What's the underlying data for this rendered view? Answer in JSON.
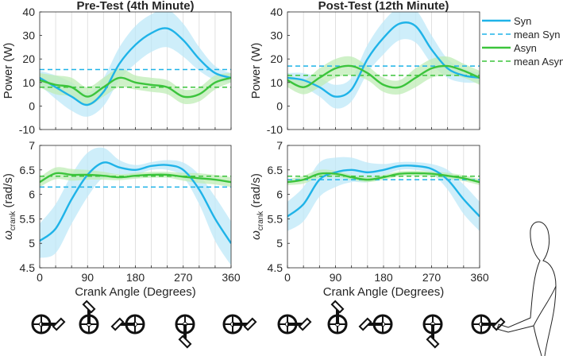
{
  "colors": {
    "syn": "#1fb3e8",
    "syn_band": "#bde8f8",
    "asyn": "#3cc43c",
    "asyn_band": "#bfecb5"
  },
  "legend": {
    "items": [
      {
        "label": "Syn",
        "series": "syn",
        "style": "solid"
      },
      {
        "label": "mean Syn",
        "series": "syn",
        "style": "dashed"
      },
      {
        "label": "Asyn",
        "series": "asyn",
        "style": "solid"
      },
      {
        "label": "mean Asyn",
        "series": "asyn",
        "style": "dashed"
      }
    ],
    "placement": "right"
  },
  "chart_data": [
    {
      "type": "line",
      "title": "Pre-Test (4th Minute)",
      "panel": "pre-power",
      "xlabel": "",
      "ylabel": "Power (W)",
      "xlim": [
        0,
        360
      ],
      "ylim": [
        -10,
        40
      ],
      "yticks": [
        "-10",
        "0",
        "10",
        "20",
        "30",
        "40"
      ],
      "grid": "x",
      "x": [
        0,
        30,
        60,
        90,
        120,
        150,
        180,
        210,
        240,
        270,
        300,
        330,
        360
      ],
      "series": [
        {
          "name": "Syn",
          "key": "syn",
          "values": [
            12,
            8,
            4,
            0.5,
            6,
            18,
            26,
            31,
            33,
            28,
            20,
            14,
            12
          ],
          "band": [
            3,
            5,
            6,
            5,
            6,
            7,
            8,
            8,
            8,
            7,
            5,
            3,
            2
          ],
          "mean": 15.5
        },
        {
          "name": "Asyn",
          "key": "asyn",
          "values": [
            11,
            9,
            8,
            4,
            8,
            12,
            10,
            9,
            8,
            4,
            5,
            10,
            12
          ],
          "band": [
            3,
            4,
            4,
            4,
            4,
            4,
            3,
            3,
            3,
            3,
            3,
            3,
            2
          ],
          "mean": 8
        }
      ]
    },
    {
      "type": "line",
      "title": "Post-Test (12th Minute)",
      "panel": "post-power",
      "xlabel": "",
      "ylabel": "Power (W)",
      "xlim": [
        0,
        360
      ],
      "ylim": [
        -10,
        40
      ],
      "yticks": [
        "-10",
        "0",
        "10",
        "20",
        "30",
        "40"
      ],
      "grid": "x",
      "x": [
        0,
        30,
        60,
        90,
        120,
        150,
        180,
        210,
        240,
        270,
        300,
        330,
        360
      ],
      "series": [
        {
          "name": "Syn",
          "key": "syn",
          "values": [
            12,
            11,
            8,
            4,
            7,
            20,
            29,
            35,
            34,
            24,
            16,
            13,
            12
          ],
          "band": [
            2,
            3,
            4,
            5,
            5,
            6,
            7,
            7,
            7,
            6,
            4,
            3,
            2
          ],
          "mean": 17
        },
        {
          "name": "Asyn",
          "key": "asyn",
          "values": [
            11,
            8,
            12,
            16,
            17,
            14,
            9,
            8,
            12,
            16,
            17,
            15,
            12
          ],
          "band": [
            3,
            3,
            4,
            4,
            4,
            3,
            3,
            3,
            4,
            4,
            4,
            3,
            3
          ],
          "mean": 13
        }
      ]
    },
    {
      "type": "line",
      "title": "",
      "panel": "pre-velocity",
      "xlabel": "Crank Angle (Degrees)",
      "ylabel_main": "ω",
      "ylabel_sub": "crank",
      "ylabel_unit": " (rad/s)",
      "xlim": [
        0,
        360
      ],
      "ylim": [
        4.5,
        7
      ],
      "xticks": [
        "0",
        "90",
        "180",
        "270",
        "360"
      ],
      "yticks": [
        "4.5",
        "5",
        "5.5",
        "6",
        "6.5",
        "7"
      ],
      "grid": "x",
      "x": [
        0,
        30,
        60,
        90,
        120,
        150,
        180,
        210,
        240,
        270,
        300,
        330,
        360
      ],
      "series": [
        {
          "name": "Syn",
          "key": "syn",
          "values": [
            5.05,
            5.3,
            5.9,
            6.4,
            6.65,
            6.55,
            6.5,
            6.58,
            6.6,
            6.5,
            6.1,
            5.5,
            5.0
          ],
          "band": [
            0.35,
            0.5,
            0.5,
            0.45,
            0.3,
            0.15,
            0.1,
            0.08,
            0.1,
            0.15,
            0.3,
            0.45,
            0.45
          ],
          "mean": 6.15
        },
        {
          "name": "Asyn",
          "key": "asyn",
          "values": [
            6.25,
            6.43,
            6.4,
            6.4,
            6.38,
            6.35,
            6.38,
            6.4,
            6.4,
            6.36,
            6.33,
            6.3,
            6.25
          ],
          "band": [
            0.1,
            0.12,
            0.12,
            0.1,
            0.08,
            0.06,
            0.06,
            0.06,
            0.06,
            0.08,
            0.1,
            0.1,
            0.1
          ],
          "mean": 6.37
        }
      ]
    },
    {
      "type": "line",
      "title": "",
      "panel": "post-velocity",
      "xlabel": "Crank Angle (Degrees)",
      "ylabel_main": "ω",
      "ylabel_sub": "crank",
      "ylabel_unit": " (rad/s)",
      "xlim": [
        0,
        360
      ],
      "ylim": [
        4.5,
        7
      ],
      "xticks": [
        "0",
        "90",
        "180",
        "270",
        "360"
      ],
      "yticks": [
        "4.5",
        "5",
        "5.5",
        "6",
        "6.5",
        "7"
      ],
      "grid": "x",
      "x": [
        0,
        30,
        60,
        90,
        120,
        150,
        180,
        210,
        240,
        270,
        300,
        330,
        360
      ],
      "series": [
        {
          "name": "Syn",
          "key": "syn",
          "values": [
            5.55,
            5.8,
            6.3,
            6.45,
            6.5,
            6.45,
            6.5,
            6.58,
            6.58,
            6.52,
            6.3,
            5.9,
            5.55
          ],
          "band": [
            0.3,
            0.35,
            0.35,
            0.3,
            0.25,
            0.2,
            0.12,
            0.08,
            0.08,
            0.1,
            0.2,
            0.3,
            0.3
          ],
          "mean": 6.3
        },
        {
          "name": "Asyn",
          "key": "asyn",
          "values": [
            6.25,
            6.3,
            6.42,
            6.42,
            6.35,
            6.3,
            6.35,
            6.42,
            6.43,
            6.42,
            6.38,
            6.33,
            6.25
          ],
          "band": [
            0.06,
            0.08,
            0.08,
            0.06,
            0.05,
            0.05,
            0.05,
            0.05,
            0.05,
            0.05,
            0.06,
            0.06,
            0.06
          ],
          "mean": 6.37
        }
      ]
    }
  ],
  "crank_positions_deg": [
    0,
    90,
    180,
    270,
    360,
    0,
    90,
    180,
    270,
    360
  ]
}
